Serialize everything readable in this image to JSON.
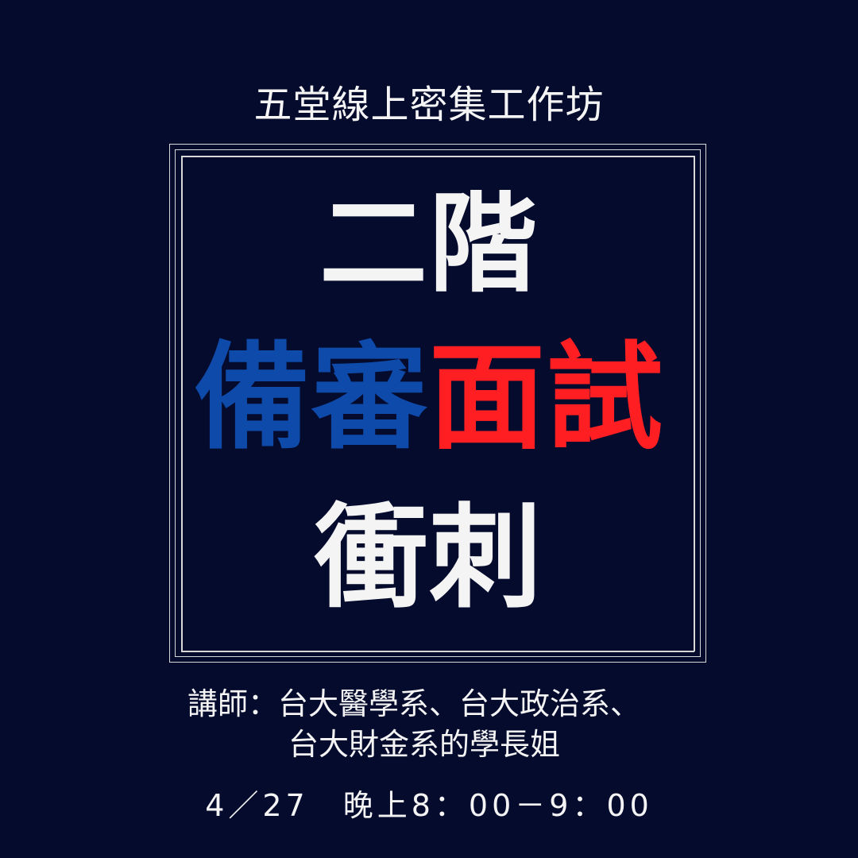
{
  "workshop": {
    "subtitle": "五堂線上密集工作坊",
    "headline_line_1": "二階",
    "headline_line_2_blue": "備審",
    "headline_line_2_red": "面試",
    "headline_line_3": "衝刺",
    "teacher_line_1": "講師：台大醫學系、台大政治系、",
    "teacher_line_2": "台大財金系的學長姐",
    "schedule": "4／27　晚上8：00－9：00"
  },
  "colors": {
    "background": "#050b2d",
    "text": "#f4f4f4",
    "blue": "#0d4aa9",
    "red": "#ff1f22",
    "frame": "#d8d8d8"
  }
}
